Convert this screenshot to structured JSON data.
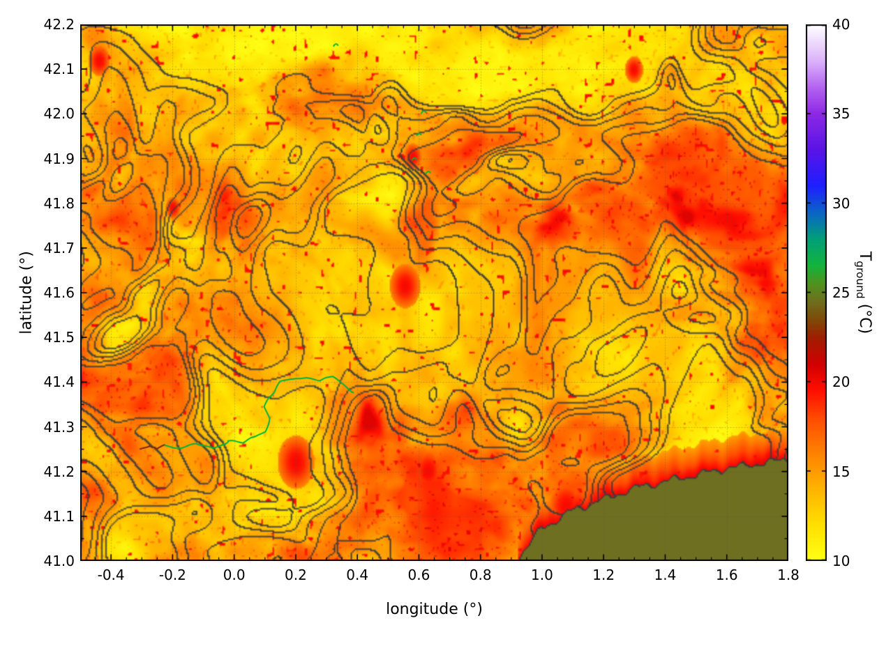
{
  "figure": {
    "background_color": "#ffffff",
    "xlabel": "longitude (°)",
    "ylabel": "latitude (°)",
    "colorbar_label_main": "T",
    "colorbar_label_sub": "ground",
    "colorbar_label_units": " (°C)"
  },
  "chart_data": {
    "type": "heatmap",
    "title": "",
    "xlabel": "longitude (°)",
    "ylabel": "latitude (°)",
    "x_range": [
      -0.5,
      1.8
    ],
    "y_range": [
      41.0,
      42.2
    ],
    "x_tick_values": [
      -0.4,
      -0.2,
      0.0,
      0.2,
      0.4,
      0.6,
      0.8,
      1.0,
      1.2,
      1.4,
      1.6,
      1.8
    ],
    "x_tick_labels": [
      "-0.4",
      "-0.2",
      "0.0",
      "0.2",
      "0.4",
      "0.6",
      "0.8",
      "1.0",
      "1.2",
      "1.4",
      "1.6",
      "1.8"
    ],
    "x_minor_tick_step": 0.05,
    "y_tick_values": [
      41.0,
      41.1,
      41.2,
      41.3,
      41.4,
      41.5,
      41.6,
      41.7,
      41.8,
      41.9,
      42.0,
      42.1,
      42.2
    ],
    "y_tick_labels": [
      "41.0",
      "41.1",
      "41.2",
      "41.3",
      "41.4",
      "41.5",
      "41.6",
      "41.7",
      "41.8",
      "41.9",
      "42.0",
      "42.1",
      "42.2"
    ],
    "y_minor_tick_step": 0.05,
    "grid": {
      "visible": true,
      "style": "dotted",
      "color": "#5a5a5a"
    },
    "colorbar": {
      "label": "T_ground (°C)",
      "range": [
        10,
        40
      ],
      "tick_values": [
        10,
        15,
        20,
        25,
        30,
        35,
        40
      ],
      "tick_labels": [
        "10",
        "15",
        "20",
        "25",
        "30",
        "35",
        "40"
      ],
      "palette_stops": [
        [
          10,
          "#ffff14"
        ],
        [
          12,
          "#ffe000"
        ],
        [
          14,
          "#ffb400"
        ],
        [
          16,
          "#ff8200"
        ],
        [
          18,
          "#ff4b00"
        ],
        [
          19.5,
          "#ff0f00"
        ],
        [
          21,
          "#d20000"
        ],
        [
          22.5,
          "#a01e00"
        ],
        [
          23.5,
          "#7d4b0a"
        ],
        [
          24.5,
          "#6e6e1e"
        ],
        [
          25.5,
          "#50921e"
        ],
        [
          26.5,
          "#14b43c"
        ],
        [
          28,
          "#00a078"
        ],
        [
          29.5,
          "#0a64c8"
        ],
        [
          31,
          "#1e1eff"
        ],
        [
          33,
          "#5a14e6"
        ],
        [
          35,
          "#8c28e6"
        ],
        [
          36.5,
          "#b464f0"
        ],
        [
          38,
          "#dcb4fa"
        ],
        [
          40,
          "#ffffff"
        ]
      ]
    },
    "field": {
      "description": "Ground temperature map over NE Spain (Catalonia): mottled 10.5-20.5 °C land field (yellow-orange-red), dark gray elevation-like contour overlay, green river traces, olive Mediterranean sea mask in the lower right with a warm red coastal strip",
      "land_temp_range_c": [
        10.5,
        20.6
      ],
      "coastal_strip_temp_c": 20.3,
      "hotspots": [
        [
          0.555,
          41.615,
          0.05
        ],
        [
          -0.44,
          42.12,
          0.035
        ],
        [
          0.2,
          41.22,
          0.06
        ],
        [
          0.63,
          41.2,
          0.05
        ],
        [
          1.08,
          41.12,
          0.06
        ],
        [
          0.58,
          41.905,
          0.03
        ],
        [
          -0.2,
          41.79,
          0.025
        ],
        [
          1.3,
          42.1,
          0.03
        ]
      ]
    },
    "sea": {
      "color": "#6f6f22",
      "coast_points": [
        [
          0.92,
          41.0
        ],
        [
          1.0,
          41.07
        ],
        [
          1.1,
          41.11
        ],
        [
          1.2,
          41.135
        ],
        [
          1.3,
          41.16
        ],
        [
          1.4,
          41.175
        ],
        [
          1.5,
          41.19
        ],
        [
          1.6,
          41.205
        ],
        [
          1.7,
          41.215
        ],
        [
          1.8,
          41.225
        ]
      ]
    },
    "contours": {
      "color": "#3c3c3c",
      "levels": [
        0.34,
        0.44,
        0.54,
        0.64,
        0.74
      ]
    },
    "rivers": {
      "color": "#00b43c",
      "main_path": [
        [
          -0.225,
          41.258
        ],
        [
          -0.17,
          41.252
        ],
        [
          -0.12,
          41.262
        ],
        [
          -0.07,
          41.255
        ],
        [
          -0.02,
          41.268
        ],
        [
          0.03,
          41.262
        ],
        [
          0.06,
          41.275
        ],
        [
          0.1,
          41.29
        ],
        [
          0.115,
          41.32
        ],
        [
          0.1,
          41.345
        ],
        [
          0.125,
          41.375
        ],
        [
          0.15,
          41.4
        ],
        [
          0.19,
          41.405
        ],
        [
          0.235,
          41.41
        ],
        [
          0.28,
          41.405
        ],
        [
          0.32,
          41.41
        ],
        [
          0.355,
          41.395
        ],
        [
          0.385,
          41.375
        ]
      ],
      "upstream_color": "#7a2810",
      "upstream_path": [
        [
          -0.305,
          41.25
        ],
        [
          -0.275,
          41.258
        ],
        [
          -0.25,
          41.25
        ],
        [
          -0.225,
          41.258
        ]
      ],
      "green_marks": [
        [
          0.33,
          42.155
        ],
        [
          0.6,
          41.955
        ],
        [
          0.585,
          41.9
        ],
        [
          0.615,
          42.005
        ],
        [
          0.63,
          41.87
        ]
      ]
    }
  }
}
